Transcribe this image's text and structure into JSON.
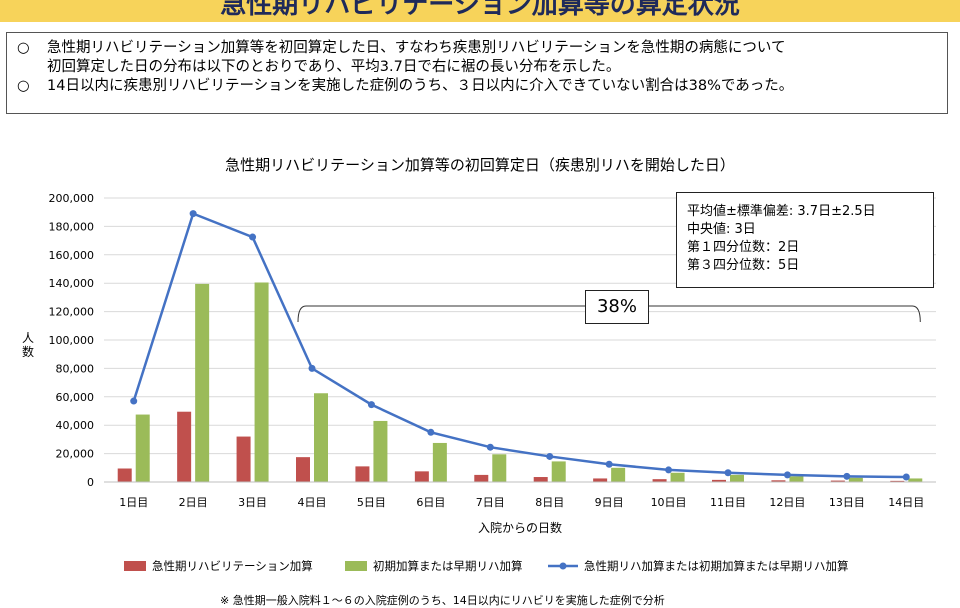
{
  "header": {
    "title": "急性期リハビリテーション加算等の算定状況"
  },
  "summary": {
    "bullet": "○",
    "line1": "急性期リハビリテーション加算等を初回算定した日、すなわち疾患別リハビリテーションを急性期の病態について",
    "line1b": "初回算定した日の分布は以下のとおりであり、平均3.7日で右に裾の長い分布を示した。",
    "line2": "14日以内に疾患別リハビリテーションを実施した症例のうち、３日以内に介入できていない割合は38%であった。"
  },
  "chart_data": {
    "type": "bar",
    "title": "急性期リハビリテーション加算等の初回算定日（疾患別リハを開始した日）",
    "xlabel": "入院からの日数",
    "ylabel": "人数",
    "ylim": [
      0,
      200000
    ],
    "ytick_labels": [
      "0",
      "20,000",
      "40,000",
      "60,000",
      "80,000",
      "100,000",
      "120,000",
      "140,000",
      "160,000",
      "180,000",
      "200,000"
    ],
    "categories": [
      "1日目",
      "2日目",
      "3日目",
      "4日目",
      "5日目",
      "6日目",
      "7日目",
      "8日目",
      "9日目",
      "10日目",
      "11日目",
      "12日目",
      "13日目",
      "14日目"
    ],
    "series": [
      {
        "name": "急性期リハビリテーション加算",
        "type": "bar",
        "color": "#c0504d",
        "values": [
          9500,
          49500,
          32000,
          17500,
          11000,
          7500,
          5000,
          3500,
          2500,
          2000,
          1500,
          1200,
          1000,
          800
        ]
      },
      {
        "name": "初期加算または早期リハ加算",
        "type": "bar",
        "color": "#9bbb59",
        "values": [
          47500,
          139500,
          140500,
          62500,
          43000,
          27500,
          19500,
          14500,
          10000,
          6500,
          5000,
          4000,
          3000,
          2500
        ]
      },
      {
        "name": "急性期リハ加算または初期加算または早期リハ加算",
        "type": "line",
        "color": "#4472c4",
        "values": [
          57000,
          189000,
          172500,
          80000,
          54500,
          35000,
          24500,
          18000,
          12500,
          8500,
          6500,
          5000,
          4000,
          3500
        ]
      }
    ],
    "grid": true,
    "legend_position": "bottom",
    "annotation": {
      "text": "38%",
      "span": [
        "4日目",
        "14日目"
      ]
    },
    "stats_box": [
      "平均値±標準偏差: 3.7日±2.5日",
      "中央値:  3日",
      "第１四分位数：2日",
      "第３四分位数：5日"
    ]
  },
  "footnote": "※ 急性期一般入院料１～６の入院症例のうち、14日以内にリハビリを実施した症例で分析"
}
